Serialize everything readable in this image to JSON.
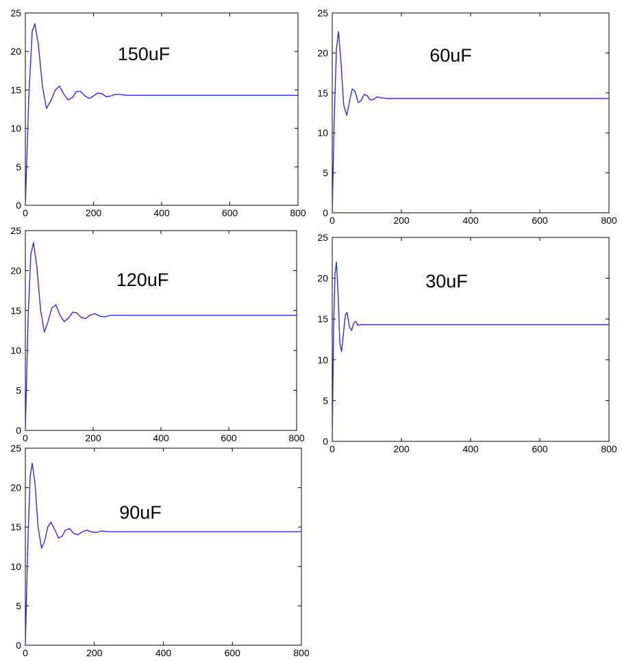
{
  "chart_data": [
    {
      "type": "line",
      "annotation": "150uF",
      "xlim": [
        0,
        800
      ],
      "ylim": [
        0,
        25
      ],
      "xticks": [
        0,
        200,
        400,
        600,
        800
      ],
      "yticks": [
        0,
        5,
        10,
        15,
        20,
        25
      ],
      "color": "#2a2af0",
      "series": [
        {
          "x": [
            0,
            10,
            20,
            28,
            38,
            50,
            62,
            75,
            88,
            100,
            112,
            125,
            138,
            150,
            162,
            175,
            188,
            200,
            212,
            225,
            238,
            250,
            262,
            275,
            300,
            400,
            500,
            600,
            700,
            800
          ],
          "y": [
            0,
            14.0,
            22.6,
            23.6,
            21.0,
            15.5,
            12.6,
            13.6,
            15.0,
            15.5,
            14.5,
            13.7,
            14.0,
            14.8,
            14.8,
            14.2,
            13.9,
            14.2,
            14.6,
            14.5,
            14.1,
            14.2,
            14.4,
            14.4,
            14.3,
            14.3,
            14.3,
            14.3,
            14.3,
            14.3
          ]
        }
      ]
    },
    {
      "type": "line",
      "annotation": "60uF",
      "xlim": [
        0,
        800
      ],
      "ylim": [
        0,
        25
      ],
      "xticks": [
        0,
        200,
        400,
        600,
        800
      ],
      "yticks": [
        0,
        5,
        10,
        15,
        20,
        25
      ],
      "color": "#2a2af0",
      "series": [
        {
          "x": [
            0,
            6,
            12,
            18,
            25,
            33,
            42,
            50,
            58,
            66,
            75,
            83,
            92,
            100,
            110,
            120,
            130,
            140,
            160,
            200,
            400,
            600,
            800
          ],
          "y": [
            0,
            12.0,
            20.5,
            22.7,
            19.0,
            13.5,
            12.2,
            14.0,
            15.5,
            15.2,
            13.8,
            14.0,
            14.8,
            14.7,
            14.1,
            14.2,
            14.5,
            14.4,
            14.3,
            14.3,
            14.3,
            14.3,
            14.3
          ]
        }
      ]
    },
    {
      "type": "line",
      "annotation": "120uF",
      "xlim": [
        0,
        800
      ],
      "ylim": [
        0,
        25
      ],
      "xticks": [
        0,
        200,
        400,
        600,
        800
      ],
      "yticks": [
        0,
        5,
        10,
        15,
        20,
        25
      ],
      "color": "#2a2af0",
      "series": [
        {
          "x": [
            0,
            8,
            16,
            24,
            34,
            45,
            56,
            66,
            78,
            90,
            102,
            115,
            128,
            140,
            152,
            165,
            178,
            190,
            205,
            220,
            235,
            250,
            270,
            300,
            400,
            600,
            800
          ],
          "y": [
            0,
            14.0,
            22.0,
            23.5,
            20.5,
            15.0,
            12.3,
            13.5,
            15.3,
            15.7,
            14.4,
            13.6,
            14.1,
            14.8,
            14.7,
            14.1,
            14.0,
            14.4,
            14.6,
            14.3,
            14.2,
            14.4,
            14.4,
            14.4,
            14.4,
            14.4,
            14.4
          ]
        }
      ]
    },
    {
      "type": "line",
      "annotation": "30uF",
      "xlim": [
        0,
        800
      ],
      "ylim": [
        0,
        25
      ],
      "xticks": [
        0,
        200,
        400,
        600,
        800
      ],
      "yticks": [
        0,
        5,
        10,
        15,
        20,
        25
      ],
      "color": "#2a2af0",
      "series": [
        {
          "x": [
            0,
            4,
            8,
            12,
            17,
            22,
            27,
            33,
            38,
            43,
            50,
            56,
            62,
            68,
            75,
            80,
            90,
            100,
            200,
            400,
            600,
            800
          ],
          "y": [
            0,
            14.0,
            20.5,
            22.0,
            18.0,
            12.0,
            11.0,
            13.5,
            15.5,
            15.8,
            14.0,
            13.6,
            14.5,
            14.7,
            14.2,
            14.3,
            14.3,
            14.3,
            14.3,
            14.3,
            14.3,
            14.3
          ]
        }
      ]
    },
    {
      "type": "line",
      "annotation": "90uF",
      "xlim": [
        0,
        800
      ],
      "ylim": [
        0,
        25
      ],
      "xticks": [
        0,
        200,
        400,
        600,
        800
      ],
      "yticks": [
        0,
        5,
        10,
        15,
        20,
        25
      ],
      "color": "#2a2af0",
      "series": [
        {
          "x": [
            0,
            7,
            14,
            20,
            28,
            37,
            47,
            56,
            65,
            74,
            85,
            96,
            106,
            116,
            128,
            140,
            152,
            165,
            178,
            190,
            205,
            220,
            240,
            260,
            300,
            400,
            600,
            800
          ],
          "y": [
            0,
            12.5,
            21.5,
            23.1,
            20.5,
            15.0,
            12.3,
            13.2,
            15.0,
            15.6,
            14.7,
            13.6,
            13.8,
            14.6,
            14.8,
            14.2,
            14.0,
            14.4,
            14.6,
            14.4,
            14.3,
            14.5,
            14.4,
            14.4,
            14.4,
            14.4,
            14.4,
            14.4
          ]
        }
      ]
    }
  ]
}
